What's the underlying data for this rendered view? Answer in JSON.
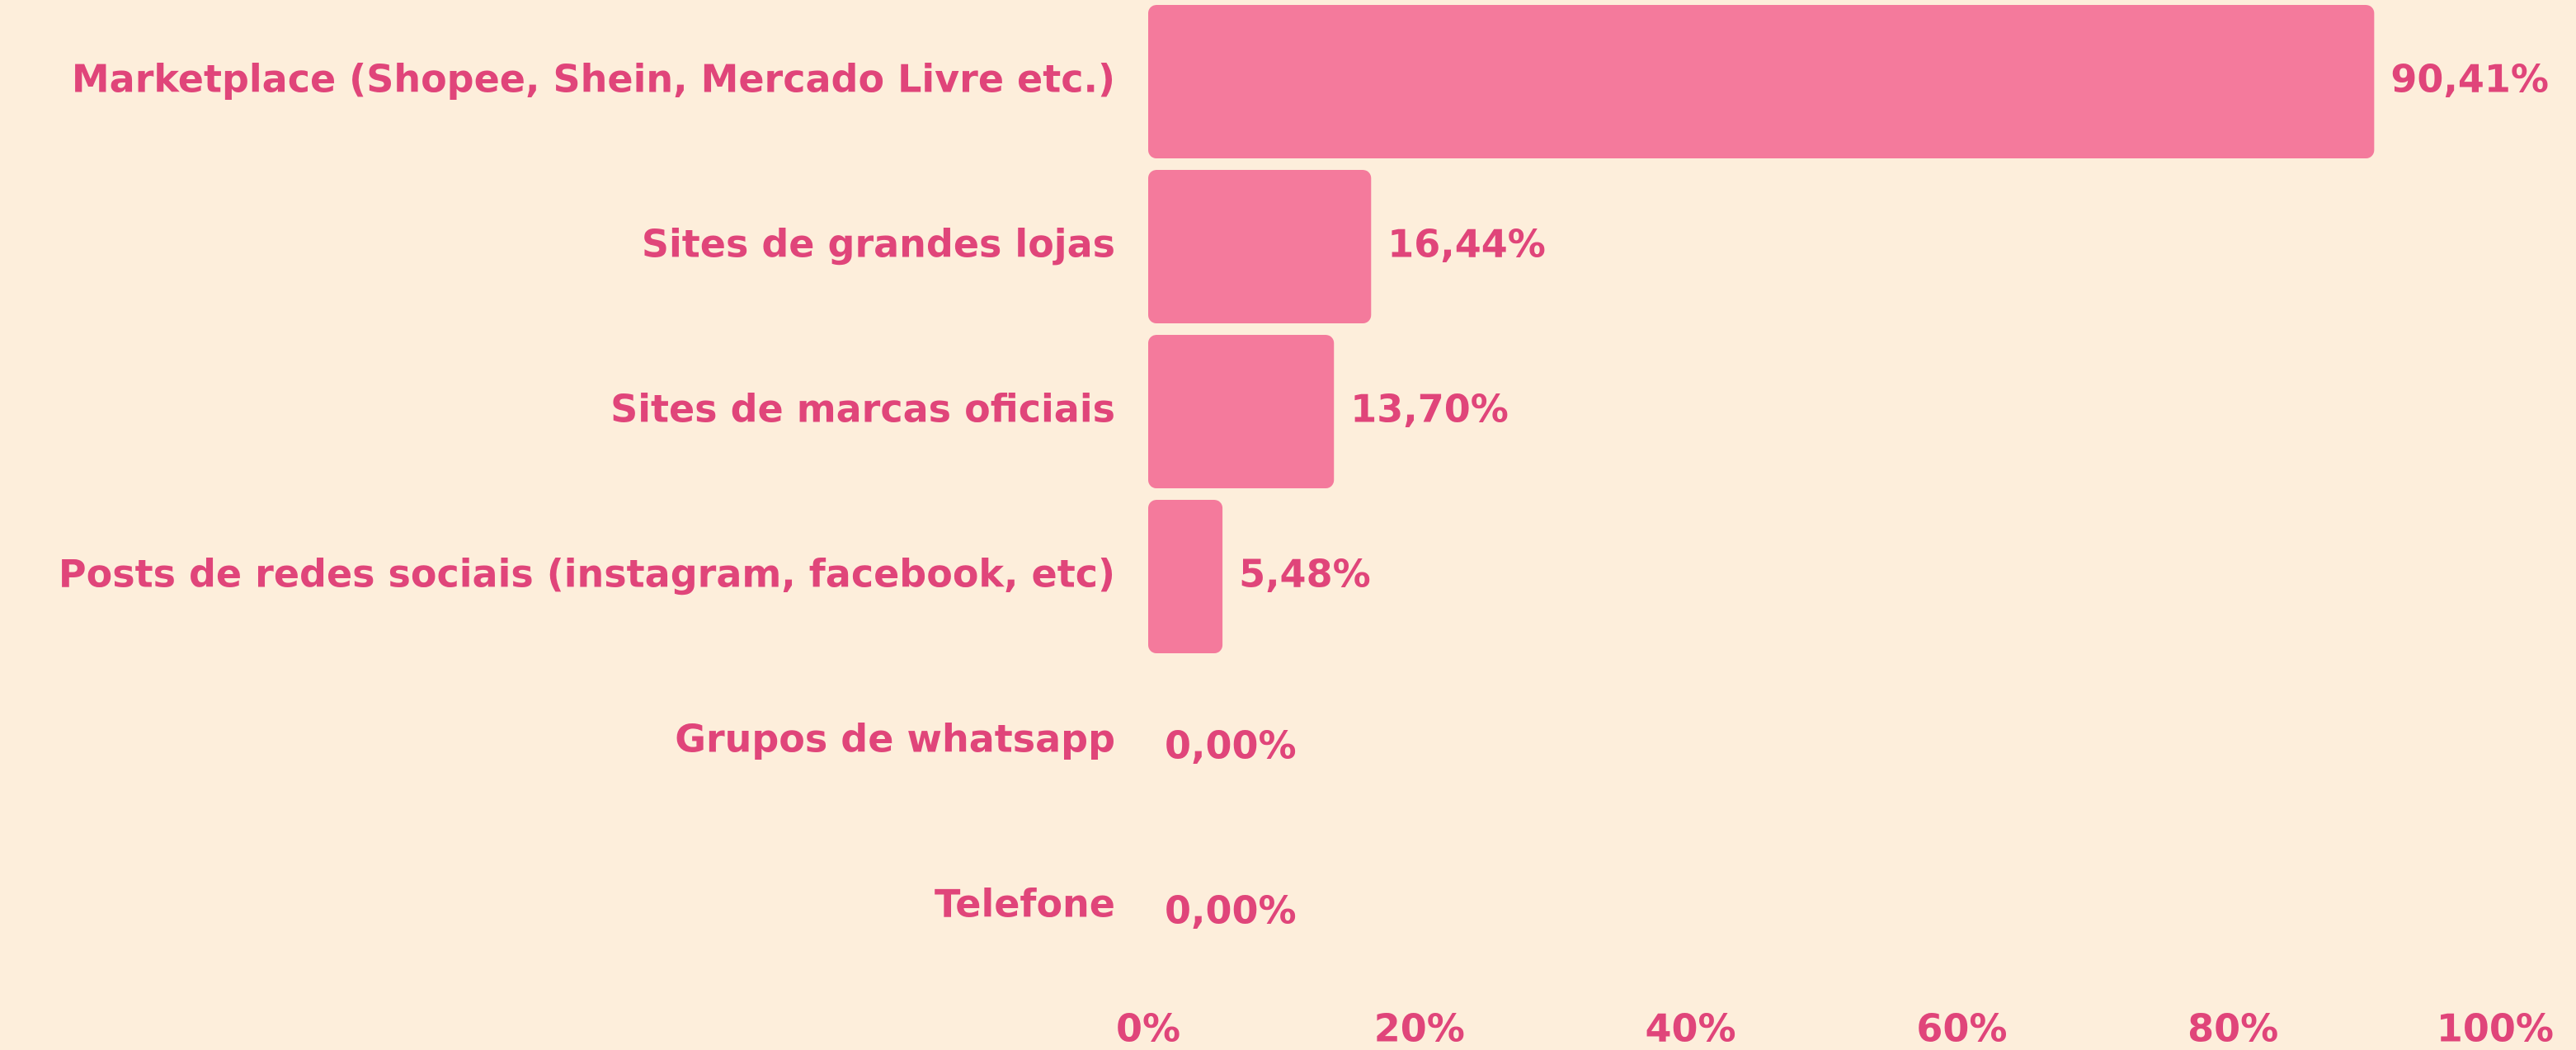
{
  "chart_data": {
    "type": "bar",
    "orientation": "horizontal",
    "categories": [
      "Marketplace (Shopee, Shein, Mercado Livre etc.)",
      "Sites de grandes lojas",
      "Sites de marcas oficiais",
      "Posts de redes sociais (instagram, facebook, etc)",
      "Grupos de whatsapp",
      "Telefone"
    ],
    "values": [
      90.41,
      16.44,
      13.7,
      5.48,
      0,
      0
    ],
    "value_labels": [
      "90,41%",
      "16,44%",
      "13,70%",
      "5,48%",
      "0,00%",
      "0,00%"
    ],
    "color": "#f47a9c",
    "xlim": [
      0,
      100
    ],
    "xticks": [
      {
        "value": 0,
        "label": "0%"
      },
      {
        "value": 20,
        "label": "20%"
      },
      {
        "value": 40,
        "label": "40%"
      },
      {
        "value": 60,
        "label": "60%"
      },
      {
        "value": 80,
        "label": "80%"
      },
      {
        "value": 100,
        "label": "100%"
      }
    ],
    "grid": false
  }
}
